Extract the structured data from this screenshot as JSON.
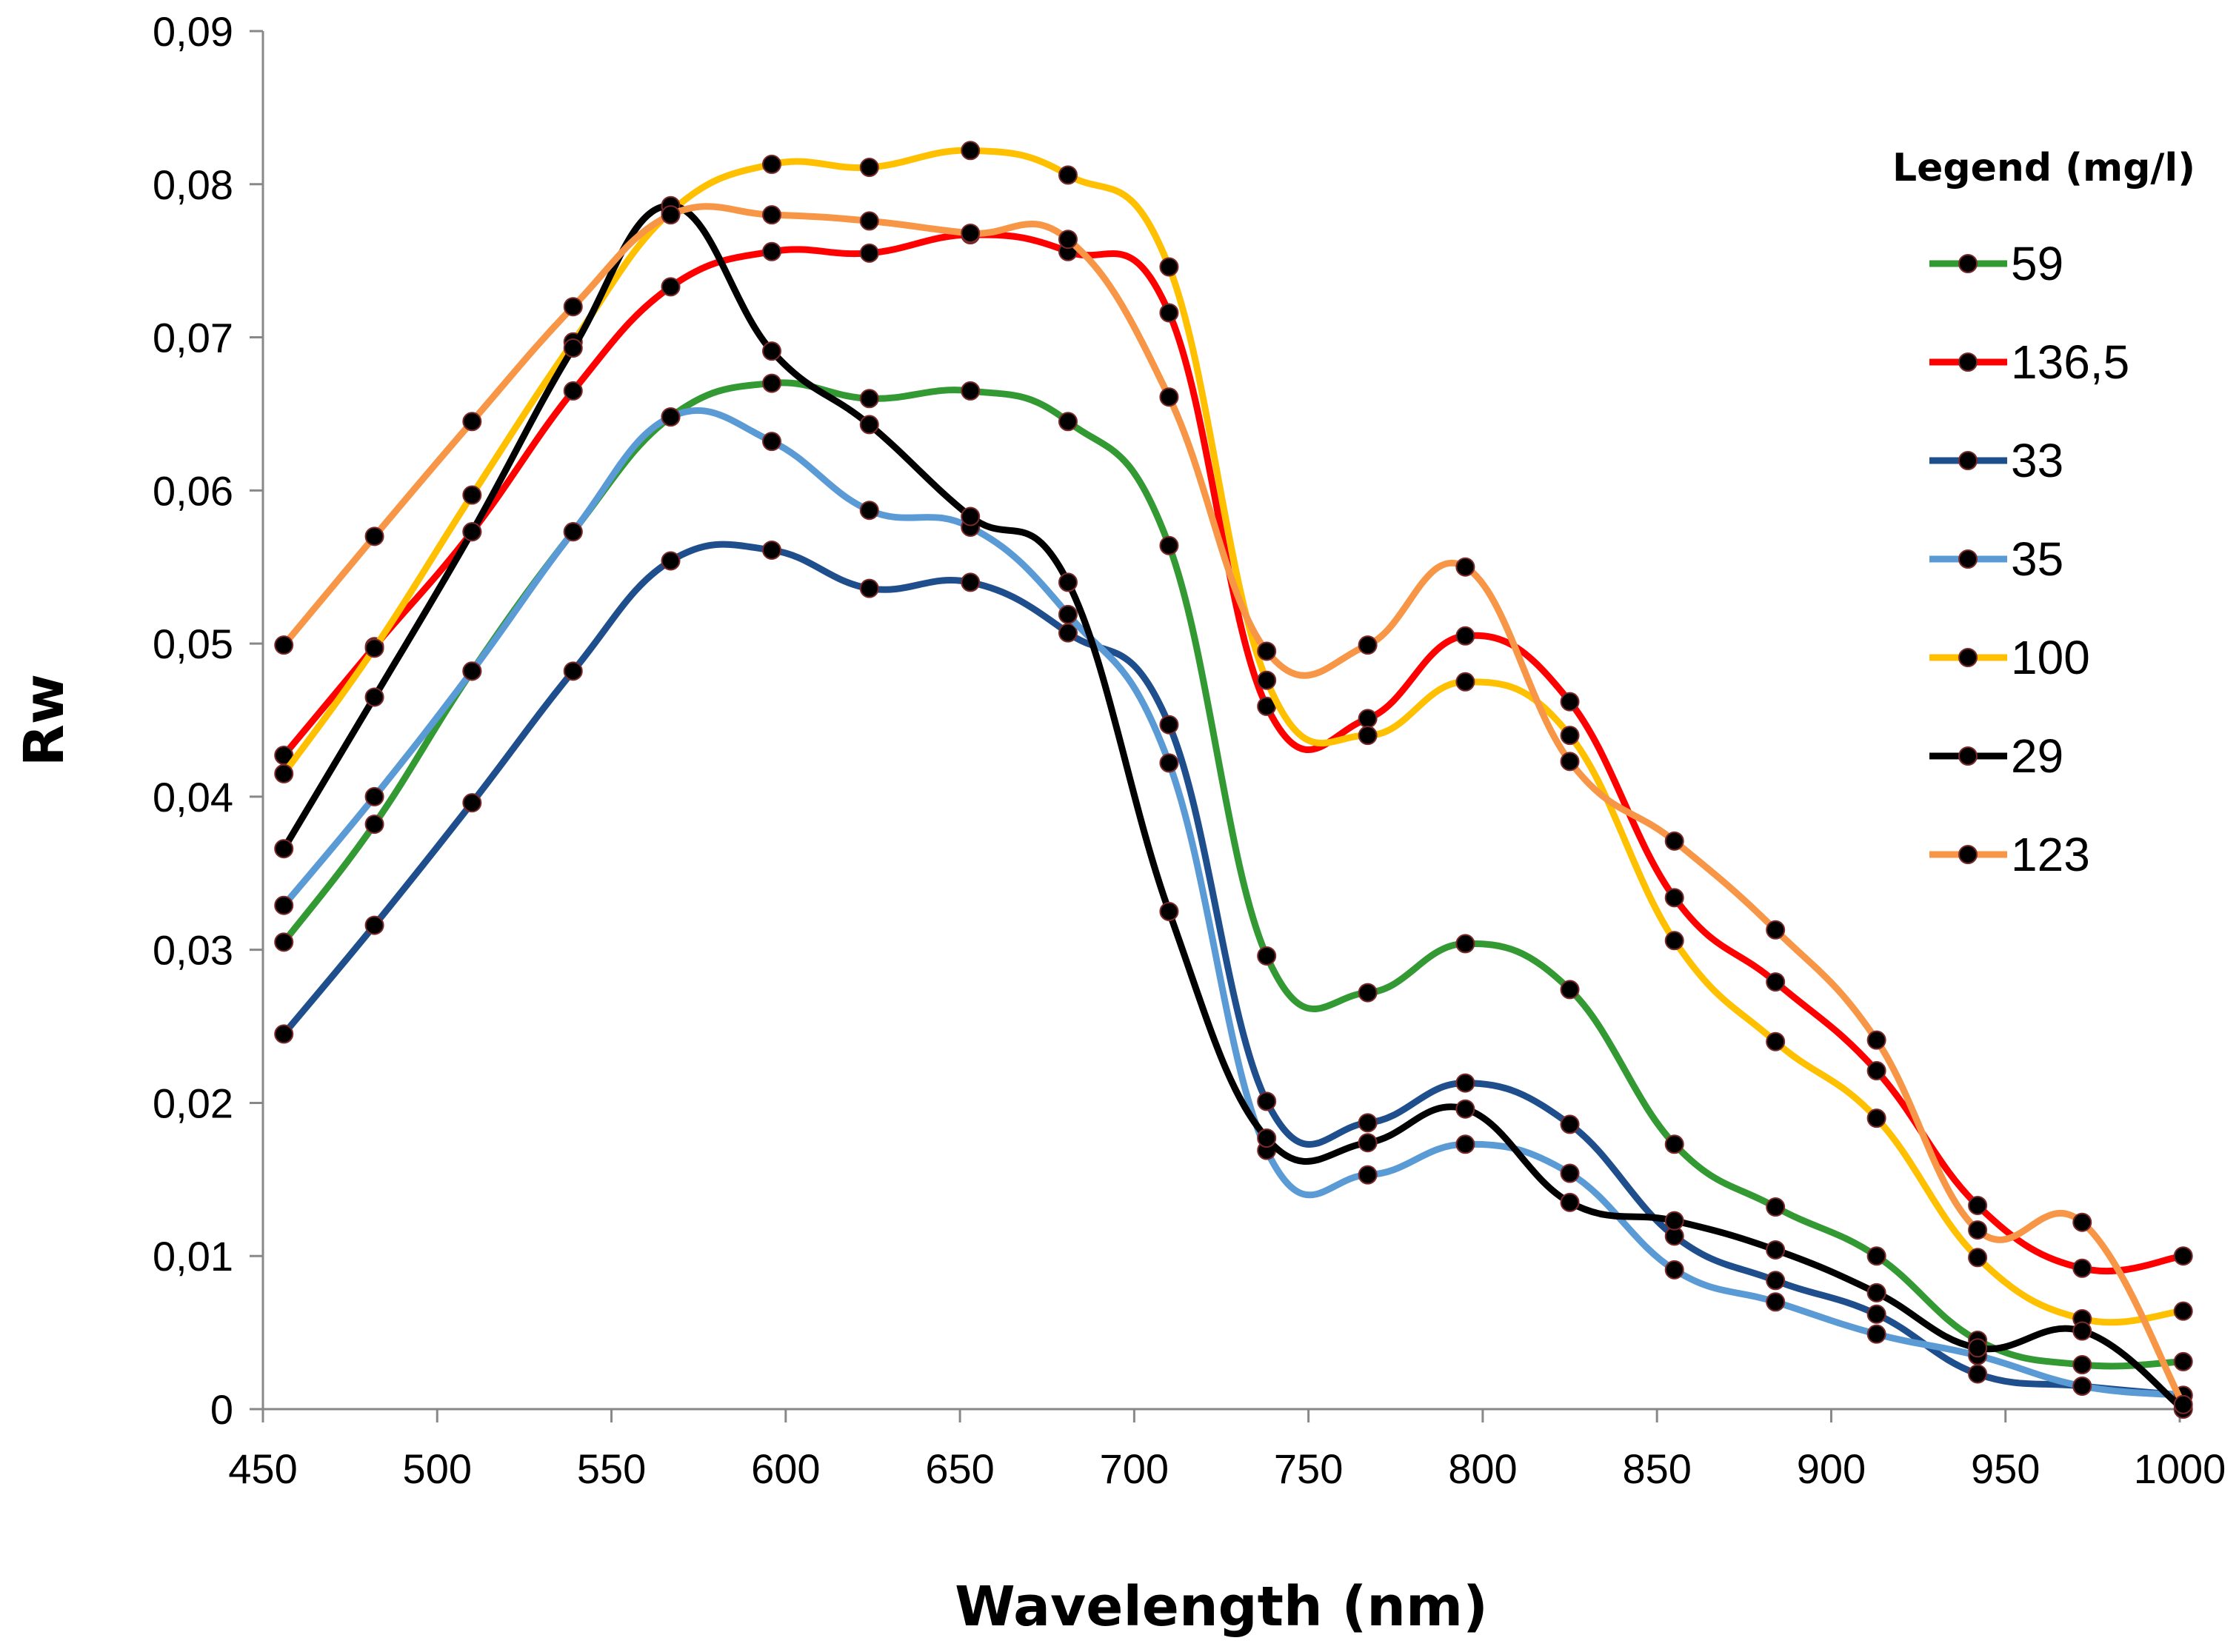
{
  "chart_data": {
    "type": "line",
    "title": "",
    "xlabel": "Wavelength (nm)",
    "ylabel": "Rw",
    "xlim": [
      450,
      1000
    ],
    "ylim": [
      0,
      0.09
    ],
    "x_ticks": [
      450,
      500,
      550,
      600,
      650,
      700,
      750,
      800,
      850,
      900,
      950,
      1000
    ],
    "x_tick_labels": [
      "450",
      "500",
      "550",
      "600",
      "650",
      "700",
      "750",
      "800",
      "850",
      "900",
      "950",
      "1000"
    ],
    "y_ticks": [
      0,
      0.01,
      0.02,
      0.03,
      0.04,
      0.05,
      0.06,
      0.07,
      0.08,
      0.09
    ],
    "y_tick_labels": [
      "0",
      "0,01",
      "0,02",
      "0,03",
      "0,04",
      "0,05",
      "0,06",
      "0,07",
      "0,08",
      "0,09"
    ],
    "grid": false,
    "legend": {
      "title": "Legend (mg/l)",
      "position": "right"
    },
    "x": [
      456,
      482,
      510,
      539,
      567,
      596,
      624,
      653,
      681,
      710,
      738,
      767,
      795,
      825,
      855,
      884,
      913,
      942,
      972,
      1001
    ],
    "series": [
      {
        "name": "59",
        "color": "#339933",
        "values": [
          0.0305,
          0.0382,
          0.0482,
          0.0573,
          0.0648,
          0.067,
          0.066,
          0.0665,
          0.0645,
          0.0564,
          0.0296,
          0.0272,
          0.0304,
          0.0274,
          0.0173,
          0.0132,
          0.01,
          0.0045,
          0.0029,
          0.0031
        ]
      },
      {
        "name": "136,5",
        "color": "#ff0000",
        "values": [
          0.0427,
          0.0498,
          0.0573,
          0.0665,
          0.0733,
          0.0756,
          0.0755,
          0.0767,
          0.0756,
          0.0716,
          0.0459,
          0.0451,
          0.0505,
          0.0462,
          0.0334,
          0.0279,
          0.0221,
          0.0133,
          0.0092,
          0.01
        ]
      },
      {
        "name": "33",
        "color": "#1f4e8c",
        "values": [
          0.0245,
          0.0316,
          0.0396,
          0.0482,
          0.0554,
          0.0561,
          0.0536,
          0.054,
          0.0507,
          0.0447,
          0.0201,
          0.0187,
          0.0213,
          0.0186,
          0.0113,
          0.0084,
          0.0062,
          0.0023,
          0.0015,
          0.0009
        ]
      },
      {
        "name": "35",
        "color": "#5b9bd5",
        "values": [
          0.0329,
          0.04,
          0.0482,
          0.0573,
          0.0648,
          0.0632,
          0.0587,
          0.0576,
          0.0519,
          0.0422,
          0.0169,
          0.0153,
          0.0173,
          0.0154,
          0.0091,
          0.007,
          0.0049,
          0.0035,
          0.0015,
          0.0009
        ]
      },
      {
        "name": "100",
        "color": "#ffc000",
        "values": [
          0.0415,
          0.0497,
          0.0597,
          0.0697,
          0.0782,
          0.0813,
          0.0811,
          0.0822,
          0.0806,
          0.0746,
          0.0476,
          0.044,
          0.0475,
          0.044,
          0.0306,
          0.024,
          0.019,
          0.0099,
          0.0059,
          0.0064
        ]
      },
      {
        "name": "29",
        "color": "#000000",
        "values": [
          0.0366,
          0.0465,
          0.0573,
          0.0693,
          0.0786,
          0.0691,
          0.0643,
          0.0583,
          0.054,
          0.0325,
          0.0177,
          0.0174,
          0.0196,
          0.0135,
          0.0123,
          0.0104,
          0.0076,
          0.004,
          0.0051,
          0.0
        ]
      },
      {
        "name": "123",
        "color": "#f79646",
        "values": [
          0.0499,
          0.057,
          0.0645,
          0.072,
          0.078,
          0.078,
          0.0776,
          0.0768,
          0.0764,
          0.0661,
          0.0495,
          0.0499,
          0.055,
          0.0423,
          0.0371,
          0.0313,
          0.0241,
          0.0117,
          0.0122,
          0.0003
        ]
      }
    ]
  }
}
